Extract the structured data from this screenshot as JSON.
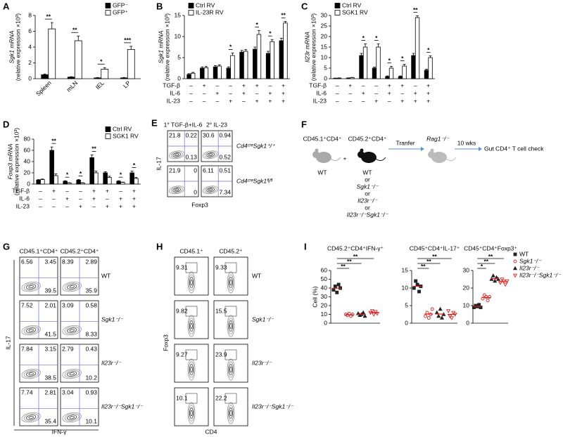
{
  "panel_labels": [
    "A",
    "B",
    "C",
    "D",
    "E",
    "F",
    "G",
    "H",
    "I"
  ],
  "chart_data": [
    {
      "type": "bar",
      "ylabel": "Sgk1 mRNA",
      "ylabel_note": "(relative expression ×10³)",
      "categories": [
        "Spleen",
        "mLN",
        "IEL",
        "LP"
      ],
      "series": [
        {
          "name": "GFP⁻",
          "color": "#000000",
          "values": [
            0.5,
            0.2,
            0.1,
            0.1
          ],
          "errors": [
            0.1,
            0.05,
            0.05,
            0.05
          ]
        },
        {
          "name": "GFP⁺",
          "color": "#ffffff",
          "values": [
            6.3,
            4.8,
            1.2,
            3.7
          ],
          "errors": [
            0.8,
            0.6,
            0.2,
            0.4
          ]
        }
      ],
      "ylim": [
        0,
        8
      ],
      "yticks": [
        0,
        2,
        4,
        6,
        8
      ],
      "legend": "upper right",
      "significance": [
        "**",
        "**",
        "*",
        "***"
      ]
    },
    {
      "type": "bar",
      "ylabel": "Sgk1 mRNA",
      "ylabel_note": "(relative expression ×10³)",
      "series": [
        {
          "name": "Ctrl RV",
          "color": "#000000",
          "values": [
            1.0,
            2.5,
            2.8,
            2.5,
            6.3,
            7.0,
            6.0,
            9.0
          ],
          "errors": [
            0.2,
            0.3,
            0.3,
            0.3,
            0.4,
            0.5,
            0.5,
            0.6
          ]
        },
        {
          "name": "IL-23R RV",
          "color": "#ffffff",
          "values": [
            1.3,
            2.6,
            3.0,
            5.5,
            6.5,
            10.5,
            8.8,
            13.2
          ],
          "errors": [
            0.2,
            0.3,
            0.3,
            0.6,
            0.4,
            0.9,
            0.5,
            0.4
          ]
        }
      ],
      "ylim": [
        0,
        15
      ],
      "yticks": [
        0,
        5,
        10,
        15
      ],
      "legend": "upper left",
      "significance": [
        null,
        null,
        null,
        "*",
        null,
        "*",
        "*",
        "**"
      ],
      "conditions": [
        {
          "label": "TGF-β",
          "marks": [
            "–",
            "+",
            "–",
            "–",
            "+",
            "+",
            "–",
            "+"
          ]
        },
        {
          "label": "IL-6",
          "marks": [
            "–",
            "–",
            "+",
            "–",
            "+",
            "–",
            "+",
            "+"
          ]
        },
        {
          "label": "IL-23",
          "marks": [
            "–",
            "–",
            "–",
            "+",
            "–",
            "+",
            "+",
            "+"
          ]
        }
      ]
    },
    {
      "type": "bar",
      "ylabel": "Il23r mRNA",
      "ylabel_note": "(relative expression ×10³)",
      "series": [
        {
          "name": "Ctrl RV",
          "color": "#000000",
          "values": [
            0.2,
            0.3,
            11,
            5,
            1,
            1,
            11,
            4
          ],
          "errors": [
            0.1,
            0.1,
            1,
            0.5,
            0.3,
            0.3,
            1,
            0.5
          ]
        },
        {
          "name": "SGK1 RV",
          "color": "#ffffff",
          "values": [
            0.3,
            0.5,
            15,
            15,
            5,
            6,
            29,
            10
          ],
          "errors": [
            0.1,
            0.1,
            1.5,
            1.5,
            0.8,
            0.8,
            0.8,
            0.8
          ]
        }
      ],
      "ylim": [
        0,
        30
      ],
      "yticks": [
        0,
        5,
        10,
        15,
        20,
        25,
        30
      ],
      "legend": "upper left",
      "significance": [
        null,
        null,
        "*",
        "*",
        "*",
        "*",
        "**",
        "*"
      ],
      "conditions": [
        {
          "label": "TGF-β",
          "marks": [
            "–",
            "+",
            "–",
            "–",
            "+",
            "+",
            "–",
            "+"
          ]
        },
        {
          "label": "IL-6",
          "marks": [
            "–",
            "–",
            "+",
            "–",
            "+",
            "–",
            "+",
            "+"
          ]
        },
        {
          "label": "IL-23",
          "marks": [
            "–",
            "–",
            "–",
            "+",
            "–",
            "+",
            "+",
            "+"
          ]
        }
      ]
    },
    {
      "type": "bar",
      "ylabel": "Foxp3 mRNA",
      "ylabel_note": "(relative expression ×10³)",
      "series": [
        {
          "name": "Ctrl RV",
          "color": "#000000",
          "values": [
            7,
            60,
            5,
            7,
            47,
            20,
            5,
            20
          ],
          "errors": [
            1,
            6,
            1,
            1,
            5,
            2,
            1,
            3
          ]
        },
        {
          "name": "SGK1 RV",
          "color": "#ffffff",
          "values": [
            8,
            15,
            2,
            2,
            20,
            12,
            3,
            10
          ],
          "errors": [
            1,
            3,
            0.5,
            0.5,
            3,
            2,
            0.5,
            2
          ]
        }
      ],
      "ylim": [
        0,
        80
      ],
      "yticks": [
        0,
        20,
        40,
        60,
        80
      ],
      "legend": "upper right",
      "significance": [
        null,
        "**",
        "*",
        "*",
        "**",
        null,
        "*",
        "*"
      ],
      "conditions": [
        {
          "label": "TGF-β",
          "marks": [
            "–",
            "+",
            "–",
            "–",
            "+",
            "+",
            "–",
            "+"
          ]
        },
        {
          "label": "IL-6",
          "marks": [
            "–",
            "–",
            "+",
            "–",
            "+",
            "–",
            "+",
            "+"
          ]
        },
        {
          "label": "IL-23",
          "marks": [
            "–",
            "–",
            "–",
            "+",
            "–",
            "+",
            "+",
            "+"
          ]
        }
      ]
    },
    {
      "type": "dot",
      "title": "CD45.2⁺CD4⁺IFN-γ⁺",
      "ylabel": "Cell (%)",
      "groups": [
        [
          38,
          42,
          35,
          44,
          40
        ],
        [
          10,
          9,
          11,
          8,
          10
        ],
        [
          11,
          9,
          10,
          12,
          8
        ],
        [
          12,
          14,
          10,
          13,
          11
        ]
      ],
      "ylim": [
        0,
        60
      ],
      "yticks": [
        0,
        10,
        20,
        30,
        40,
        50,
        60
      ],
      "significance": [
        {
          "pair": [
            0,
            1
          ],
          "label": "**"
        },
        {
          "pair": [
            0,
            2
          ],
          "label": "**"
        },
        {
          "pair": [
            0,
            3
          ],
          "label": "**"
        }
      ]
    },
    {
      "type": "dot",
      "title": "CD45⁺CD4⁺IL-17⁺",
      "groups": [
        [
          10,
          12,
          11,
          9,
          10.5
        ],
        [
          2,
          3,
          1.5,
          2.5,
          4
        ],
        [
          3,
          2,
          4,
          1.5,
          2.5
        ],
        [
          3.5,
          2,
          1.5,
          3,
          2.5
        ]
      ],
      "ylim": [
        0,
        15
      ],
      "yticks": [
        0,
        5,
        10,
        15
      ],
      "significance": [
        {
          "pair": [
            0,
            1
          ],
          "label": "**"
        },
        {
          "pair": [
            0,
            2
          ],
          "label": "**"
        },
        {
          "pair": [
            0,
            3
          ],
          "label": "**"
        }
      ]
    },
    {
      "type": "dot",
      "title": "CD45⁺CD4⁺Foxp3⁺",
      "groups": [
        [
          9,
          10,
          9.5,
          10.5,
          9
        ],
        [
          14,
          16,
          15,
          13,
          15
        ],
        [
          25,
          27,
          24,
          26,
          25
        ],
        [
          23,
          25,
          24,
          22,
          24
        ]
      ],
      "ylim": [
        0,
        30
      ],
      "yticks": [
        0,
        10,
        20,
        30
      ],
      "significance": [
        {
          "pair": [
            0,
            1
          ],
          "label": "*"
        },
        {
          "pair": [
            0,
            2
          ],
          "label": "**"
        },
        {
          "pair": [
            0,
            3
          ],
          "label": "**"
        }
      ]
    }
  ],
  "i_legend": {
    "mean_color": "#e41a1c",
    "items": [
      {
        "name": "WT",
        "marker": "square",
        "color": "#222222"
      },
      {
        "name": "Sgk1⁻/⁻",
        "marker": "circle-open",
        "color": "#d62728"
      },
      {
        "name": "Il23r⁻/⁻",
        "marker": "triangle",
        "color": "#222222"
      },
      {
        "name": "Il23r⁻/⁻Sgk1⁻/⁻",
        "marker": "triangle-down-open",
        "color": "#d62728"
      }
    ]
  },
  "flow_e": {
    "col_titles": [
      "1° TGF-β+IL-6",
      "2° IL-23"
    ],
    "row_titles": [
      "Cd4ᶜʳᵉSgk1⁺/⁺",
      "Cd4ᶜʳᵉSgk1ᶠˡ/ᶠˡ"
    ],
    "ylabel": "IL-17",
    "xlabel": "Foxp3",
    "plots": [
      [
        [
          "21.8",
          "0.22",
          "0.13"
        ],
        [
          "30.6",
          "0.94",
          "0.52"
        ]
      ],
      [
        [
          "21.9",
          "0",
          "0"
        ],
        [
          "6.11",
          "0.51",
          "7.34"
        ]
      ]
    ]
  },
  "diagram_f": {
    "donor1": "CD45.1⁺CD4⁺",
    "plus": "+",
    "donor2": "CD45.2⁺CD4⁺",
    "recipient": "Rag1⁻/⁻",
    "arrow1": "Tranfer",
    "arrow2": "10 wks",
    "readout": "Gut CD4⁺ T cell check",
    "donor1_genotype": "WT",
    "donor2_genotypes": [
      "WT",
      "or",
      "Sgk1⁻/⁻",
      "or",
      "Il23r⁻/⁻",
      "or",
      "Il23r⁻/⁻Sgk1⁻/⁻"
    ]
  },
  "flow_g": {
    "col_titles": [
      "CD45.1⁺CD4⁺",
      "CD45.2⁺CD4⁺"
    ],
    "row_titles": [
      "WT",
      "Sgk1⁻/⁻",
      "Il23r⁻/⁻",
      "Il23r⁻/⁻Sgk1⁻/⁻"
    ],
    "ylabel": "IL-17",
    "xlabel": "IFN-γ",
    "plots": [
      [
        [
          "6.56",
          "3.45",
          "39.5"
        ],
        [
          "8.39",
          "2.89",
          "35.9"
        ]
      ],
      [
        [
          "7.52",
          "2.01",
          "41.5"
        ],
        [
          "3.09",
          "0.58",
          "8.33"
        ]
      ],
      [
        [
          "7.84",
          "3.15",
          "38.5"
        ],
        [
          "2.79",
          "0.43",
          "10.2"
        ]
      ],
      [
        [
          "7.74",
          "2.81",
          "35.4"
        ],
        [
          "3.04",
          "0.93",
          "10.1"
        ]
      ]
    ]
  },
  "flow_h": {
    "col_titles": [
      "CD45.1⁺",
      "CD45.2⁺"
    ],
    "row_titles": [
      "WT",
      "Sgk1⁻/⁻",
      "Il23r⁻/⁻",
      "Il23r⁻/⁻Sgk1⁻/⁻"
    ],
    "ylabel": "Foxp3",
    "xlabel": "CD4",
    "plots": [
      [
        [
          "9.31"
        ],
        [
          "9.33"
        ]
      ],
      [
        [
          "9.82"
        ],
        [
          "15.5"
        ]
      ],
      [
        [
          "9.27"
        ],
        [
          "23.9"
        ]
      ],
      [
        [
          "10.1"
        ],
        [
          "22.2"
        ]
      ]
    ]
  }
}
